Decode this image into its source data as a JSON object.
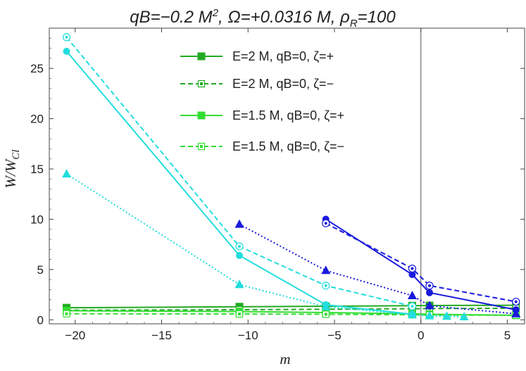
{
  "chart_data": {
    "type": "line",
    "title": "qB=−0.2 M², Ω=+0.0316 M, ρ₂=100",
    "title_parts": {
      "a": "qB=−0.2 M",
      "a_sup": "2",
      "b": ", Ω=+0.0316 M, ρ",
      "b_sub": "R",
      "c": "=100"
    },
    "xlabel": "m",
    "ylabel_main": "W/W",
    "ylabel_sub": "Cl",
    "xlim": [
      -21.5,
      6
    ],
    "ylim": [
      -0.4,
      29
    ],
    "xticks": [
      -20,
      -15,
      -10,
      -5,
      0,
      5
    ],
    "xtick_labels": [
      "−20",
      "−15",
      "−10",
      "−5",
      "0",
      "5"
    ],
    "yticks": [
      0,
      5,
      10,
      15,
      20,
      25
    ],
    "ytick_labels": [
      "0",
      "5",
      "10",
      "15",
      "20",
      "25"
    ],
    "vertical_line_x": 0,
    "legend_position": "top-center",
    "series": [
      {
        "name": "E=2 M, qB=0, ζ=+",
        "color": "#22aa22",
        "dash": "solid",
        "marker": "square-filled",
        "x": [
          -20.5,
          -10.5,
          -5.5,
          -0.5,
          0.5,
          5.5
        ],
        "y": [
          1.2,
          1.3,
          1.35,
          1.4,
          1.42,
          1.45
        ]
      },
      {
        "name": "E=2 M, qB=0, ζ=−",
        "color": "#22aa22",
        "dash": "dashed",
        "marker": "square-open",
        "x": [
          -20.5,
          -10.5,
          -5.5,
          -0.5,
          0.5,
          5.5
        ],
        "y": [
          0.95,
          1.0,
          1.05,
          1.1,
          1.12,
          1.15
        ]
      },
      {
        "name": "E=1.5 M, qB=0, ζ=+",
        "color": "#33dd33",
        "dash": "solid",
        "marker": "square-filled",
        "x": [
          -20.5,
          -10.5,
          -5.5,
          -0.5,
          0.5,
          5.5
        ],
        "y": [
          0.9,
          0.82,
          0.72,
          0.6,
          0.55,
          0.45
        ]
      },
      {
        "name": "E=1.5 M, qB=0, ζ=−",
        "color": "#33dd33",
        "dash": "dashed",
        "marker": "square-open",
        "x": [
          -20.5,
          -10.5,
          -5.5,
          -0.5,
          0.5,
          5.5
        ],
        "y": [
          0.6,
          0.58,
          0.55,
          0.5,
          0.48,
          0.45
        ]
      },
      {
        "name": "",
        "color": "#22dddd",
        "dash": "solid",
        "marker": "circle-filled",
        "x": [
          -20.5,
          -10.5,
          -5.5,
          -0.5
        ],
        "y": [
          26.7,
          6.4,
          1.5,
          0.55
        ]
      },
      {
        "name": "",
        "color": "#22dddd",
        "dash": "dashed",
        "marker": "circle-open",
        "x": [
          -20.5,
          -10.5,
          -5.5,
          -0.5
        ],
        "y": [
          28.1,
          7.3,
          3.4,
          1.35
        ]
      },
      {
        "name": "",
        "color": "#22dddd",
        "dash": "dotted",
        "marker": "triangle",
        "x": [
          -20.5,
          -10.5,
          -5.5,
          -0.5,
          0.5,
          1.5,
          2.5
        ],
        "y": [
          14.5,
          3.5,
          1.3,
          0.5,
          0.4,
          0.35,
          0.3
        ]
      },
      {
        "name": "",
        "color": "#1a1add",
        "dash": "solid",
        "marker": "circle-filled",
        "x": [
          -5.5,
          -0.5,
          0.5,
          5.5
        ],
        "y": [
          10.0,
          4.5,
          2.7,
          1.0
        ]
      },
      {
        "name": "",
        "color": "#1a1add",
        "dash": "dashed",
        "marker": "circle-open",
        "x": [
          -5.5,
          -0.5,
          0.5,
          5.5
        ],
        "y": [
          9.6,
          5.1,
          3.4,
          1.8
        ]
      },
      {
        "name": "",
        "color": "#1a1add",
        "dash": "dotted",
        "marker": "triangle",
        "x": [
          -10.5,
          -5.5,
          -0.5,
          0.5,
          5.5
        ],
        "y": [
          9.5,
          4.9,
          2.4,
          1.4,
          0.6
        ]
      }
    ],
    "legend_series": [
      0,
      1,
      2,
      3
    ]
  }
}
